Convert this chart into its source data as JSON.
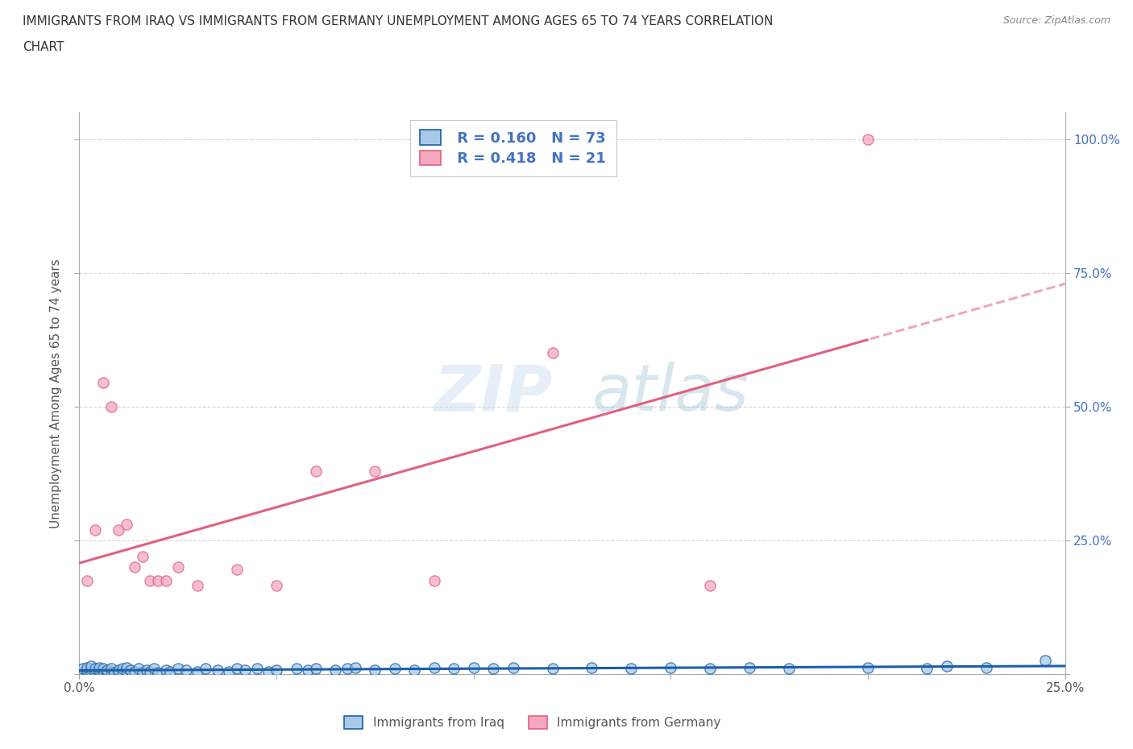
{
  "title_line1": "IMMIGRANTS FROM IRAQ VS IMMIGRANTS FROM GERMANY UNEMPLOYMENT AMONG AGES 65 TO 74 YEARS CORRELATION",
  "title_line2": "CHART",
  "source": "Source: ZipAtlas.com",
  "ylabel": "Unemployment Among Ages 65 to 74 years",
  "xlabel_iraq": "Immigrants from Iraq",
  "xlabel_germany": "Immigrants from Germany",
  "xlim": [
    0.0,
    0.25
  ],
  "ylim": [
    0.0,
    1.05
  ],
  "R_iraq": 0.16,
  "N_iraq": 73,
  "R_germany": 0.418,
  "N_germany": 21,
  "color_iraq": "#a8c8e8",
  "color_germany": "#f4a8c0",
  "line_iraq": "#1a5fa8",
  "line_germany": "#e06080",
  "axis_label_color": "#4472c4",
  "grid_color": "#cccccc",
  "iraq_x": [
    0.001,
    0.001,
    0.002,
    0.002,
    0.002,
    0.003,
    0.003,
    0.003,
    0.004,
    0.004,
    0.005,
    0.005,
    0.005,
    0.006,
    0.006,
    0.007,
    0.007,
    0.008,
    0.008,
    0.009,
    0.01,
    0.01,
    0.011,
    0.011,
    0.012,
    0.012,
    0.013,
    0.014,
    0.015,
    0.016,
    0.017,
    0.018,
    0.019,
    0.02,
    0.022,
    0.023,
    0.025,
    0.027,
    0.03,
    0.032,
    0.035,
    0.038,
    0.04,
    0.042,
    0.045,
    0.048,
    0.05,
    0.055,
    0.058,
    0.06,
    0.065,
    0.068,
    0.07,
    0.075,
    0.08,
    0.085,
    0.09,
    0.095,
    0.1,
    0.105,
    0.11,
    0.12,
    0.13,
    0.14,
    0.15,
    0.16,
    0.17,
    0.18,
    0.2,
    0.215,
    0.22,
    0.23,
    0.245
  ],
  "iraq_y": [
    0.005,
    0.01,
    0.005,
    0.008,
    0.012,
    0.005,
    0.01,
    0.015,
    0.005,
    0.01,
    0.003,
    0.008,
    0.012,
    0.005,
    0.01,
    0.003,
    0.008,
    0.005,
    0.01,
    0.003,
    0.005,
    0.008,
    0.003,
    0.01,
    0.005,
    0.012,
    0.008,
    0.005,
    0.01,
    0.003,
    0.008,
    0.005,
    0.01,
    0.003,
    0.008,
    0.005,
    0.01,
    0.008,
    0.005,
    0.01,
    0.008,
    0.005,
    0.01,
    0.008,
    0.01,
    0.005,
    0.008,
    0.01,
    0.008,
    0.01,
    0.008,
    0.01,
    0.012,
    0.008,
    0.01,
    0.008,
    0.012,
    0.01,
    0.012,
    0.01,
    0.012,
    0.01,
    0.012,
    0.01,
    0.012,
    0.01,
    0.012,
    0.01,
    0.012,
    0.01,
    0.015,
    0.012,
    0.025
  ],
  "germany_x": [
    0.002,
    0.004,
    0.006,
    0.008,
    0.01,
    0.012,
    0.014,
    0.016,
    0.018,
    0.02,
    0.022,
    0.025,
    0.03,
    0.04,
    0.05,
    0.06,
    0.075,
    0.09,
    0.12,
    0.16,
    0.2
  ],
  "germany_y": [
    0.175,
    0.27,
    0.545,
    0.5,
    0.27,
    0.28,
    0.2,
    0.22,
    0.175,
    0.175,
    0.175,
    0.2,
    0.165,
    0.195,
    0.165,
    0.38,
    0.38,
    0.175,
    0.6,
    0.165,
    1.0
  ]
}
